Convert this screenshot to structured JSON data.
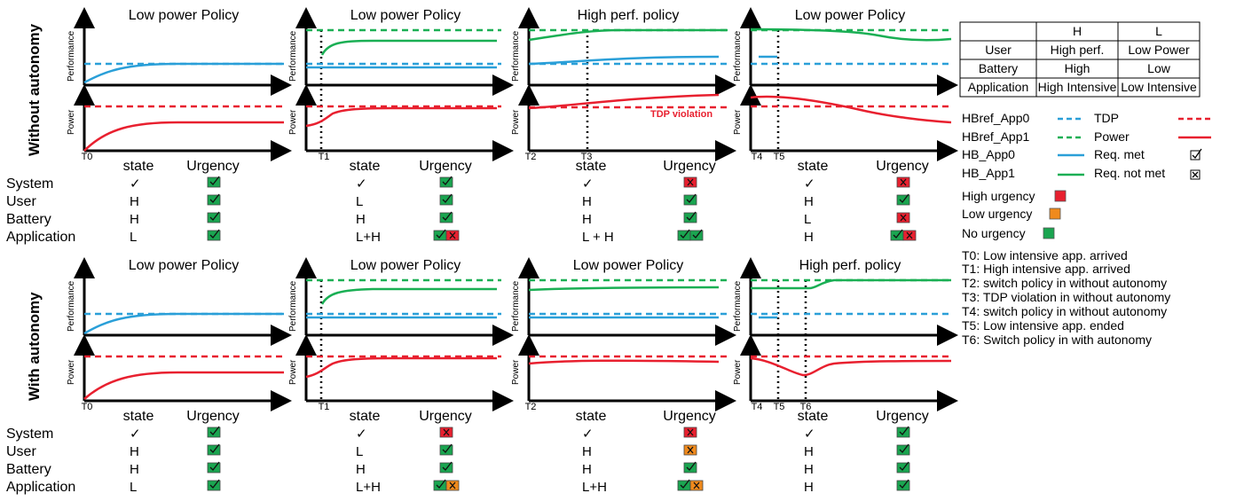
{
  "colors": {
    "tdp": "#e8202f",
    "power": "#e8202f",
    "hbref_app0": "#2a9fd8",
    "hbref_app1": "#1aaf54",
    "hb_app0": "#2a9fd8",
    "hb_app1": "#1aaf54",
    "high_urgency": "#e8202f",
    "low_urgency": "#f08a1c",
    "no_urgency": "#1aa550"
  },
  "row_titles": [
    "Without autonomy",
    "With autonomy"
  ],
  "axis_labels": {
    "performance": "Performance",
    "power": "Power"
  },
  "table_headers": {
    "state": "state",
    "urgency": "Urgency"
  },
  "row_labels": [
    "System",
    "User",
    "Battery",
    "Application"
  ],
  "violation_label": "TDP violation",
  "panels": [
    {
      "title": "Low power Policy",
      "times": [
        "T0"
      ],
      "states": [
        "✓",
        "H",
        "H",
        "L"
      ],
      "urgency": [
        [
          "g"
        ],
        [
          "g"
        ],
        [
          "g"
        ],
        [
          "g"
        ]
      ]
    },
    {
      "title": "Low power Policy",
      "times": [
        "T1"
      ],
      "states": [
        "✓",
        "L",
        "H",
        "L+H"
      ],
      "urgency": [
        [
          "g"
        ],
        [
          "g"
        ],
        [
          "g"
        ],
        [
          "g",
          "r"
        ]
      ]
    },
    {
      "title": "High perf. policy",
      "times": [
        "T2",
        "T3"
      ],
      "states": [
        "✓",
        "H",
        "H",
        "L + H"
      ],
      "urgency": [
        [
          "r"
        ],
        [
          "g"
        ],
        [
          "g"
        ],
        [
          "g",
          "g"
        ]
      ]
    },
    {
      "title": "Low power Policy",
      "times": [
        "T4",
        "T5"
      ],
      "states": [
        "✓",
        "H",
        "L",
        "H"
      ],
      "urgency": [
        [
          "r"
        ],
        [
          "g"
        ],
        [
          "r"
        ],
        [
          "g",
          "r"
        ]
      ]
    },
    {
      "title": "Low power Policy",
      "times": [
        "T0"
      ],
      "states": [
        "✓",
        "H",
        "H",
        "L"
      ],
      "urgency": [
        [
          "g"
        ],
        [
          "g"
        ],
        [
          "g"
        ],
        [
          "g"
        ]
      ]
    },
    {
      "title": "Low power Policy",
      "times": [
        "T1"
      ],
      "states": [
        "✓",
        "L",
        "H",
        "L+H"
      ],
      "urgency": [
        [
          "r"
        ],
        [
          "g"
        ],
        [
          "g"
        ],
        [
          "g",
          "o"
        ]
      ]
    },
    {
      "title": "Low power Policy",
      "times": [
        "T2"
      ],
      "states": [
        "✓",
        "H",
        "H",
        "L+H"
      ],
      "urgency": [
        [
          "r"
        ],
        [
          "o"
        ],
        [
          "g"
        ],
        [
          "g",
          "o"
        ]
      ]
    },
    {
      "title": "High perf. policy",
      "times": [
        "T4",
        "T5",
        "T6"
      ],
      "states": [
        "✓",
        "H",
        "H",
        "H"
      ],
      "urgency": [
        [
          "g"
        ],
        [
          "g"
        ],
        [
          "g"
        ],
        [
          "g"
        ]
      ]
    }
  ],
  "table": {
    "headers": [
      "",
      "H",
      "L"
    ],
    "rows": [
      [
        "User",
        "High perf.",
        "Low Power"
      ],
      [
        "Battery",
        "High",
        "Low"
      ],
      [
        "Application",
        "High Intensive",
        "Low Intensive"
      ]
    ]
  },
  "legend": {
    "items_left": [
      "HBref_App0",
      "HBref_App1",
      "HB_App0",
      "HB_App1"
    ],
    "items_right": [
      "TDP",
      "Power",
      "Req. met",
      "Req. not met"
    ],
    "urgency": [
      "High urgency",
      "Low urgency",
      "No urgency"
    ]
  },
  "time_notes": [
    "T0: Low intensive app. arrived",
    "T1: High intensive app. arrived",
    "T2: switch policy in without autonomy",
    "T3: TDP violation in without autonomy",
    "T4: switch policy in without autonomy",
    "T5: Low intensive app. ended",
    "T6: Switch policy in with autonomy"
  ]
}
